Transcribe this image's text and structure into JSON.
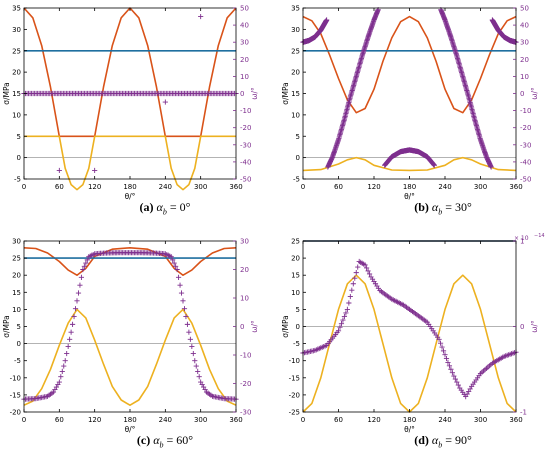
{
  "chart_data": [
    {
      "type": "line",
      "panel": "(a)",
      "caption": {
        "label": "(a)",
        "symbol": "α",
        "sub": "b",
        "eq": " = 0°"
      },
      "xlabel": "θ/°",
      "ylabel_left": "σ/MPa",
      "ylabel_right": "ω/°",
      "xlim": [
        0,
        360
      ],
      "ylim_left": [
        -5,
        35
      ],
      "ylim_right": [
        -50,
        50
      ],
      "xticks": [
        0,
        60,
        120,
        180,
        240,
        300,
        360
      ],
      "yticks_left": [
        -5,
        0,
        5,
        10,
        15,
        20,
        25,
        30,
        35
      ],
      "yticks_right": [
        -50,
        -40,
        -30,
        -20,
        -10,
        0,
        10,
        20,
        30,
        40,
        50
      ],
      "yticks_right_labels": [
        "-50",
        "-40",
        "-30",
        "-20",
        "-10",
        "0",
        "10",
        "20",
        "30",
        "40",
        "50"
      ],
      "series": [
        {
          "color": "#d95319",
          "axis": "left",
          "style": "line",
          "x": [
            0,
            15,
            30,
            45,
            60,
            90,
            120,
            135,
            150,
            165,
            180,
            195,
            210,
            225,
            240,
            270,
            300,
            315,
            330,
            345,
            360
          ],
          "y": [
            35,
            32.7,
            26.2,
            16.5,
            5,
            5,
            5,
            16.5,
            26.2,
            32.7,
            35,
            32.7,
            26.2,
            16.5,
            5,
            5,
            5,
            16.5,
            26.2,
            32.7,
            35
          ]
        },
        {
          "color": "#1f6f9f",
          "axis": "left",
          "style": "line",
          "x": [
            0,
            360
          ],
          "y": [
            25,
            25
          ]
        },
        {
          "color": "#edb120",
          "axis": "left",
          "style": "line",
          "x": [
            0,
            45,
            60,
            70,
            80,
            90,
            100,
            110,
            120,
            135,
            225,
            240,
            250,
            260,
            270,
            280,
            290,
            300,
            315,
            360
          ],
          "y": [
            5,
            5,
            5,
            -2.5,
            -6.3,
            -7.5,
            -6.3,
            -2.5,
            5,
            5,
            5,
            5,
            -2.5,
            -6.3,
            -7.5,
            -6.3,
            -2.5,
            5,
            5,
            5
          ]
        },
        {
          "color": "#7e2f8e",
          "axis": "right",
          "style": "markers",
          "x": [
            0,
            360
          ],
          "y": [
            0,
            0
          ]
        },
        {
          "color": "#7e2f8e",
          "axis": "right",
          "style": "points",
          "x": [
            60,
            120,
            240,
            300
          ],
          "y": [
            -45,
            -45,
            -5,
            45
          ]
        }
      ]
    },
    {
      "type": "line",
      "panel": "(b)",
      "caption": {
        "label": "(b)",
        "symbol": "α",
        "sub": "b",
        "eq": " = 30°"
      },
      "xlabel": "θ/°",
      "ylabel_left": "σ/MPa",
      "ylabel_right": "ω/°",
      "xlim": [
        0,
        360
      ],
      "ylim_left": [
        -5,
        35
      ],
      "ylim_right": [
        -50,
        50
      ],
      "xticks": [
        0,
        60,
        120,
        180,
        240,
        300,
        360
      ],
      "yticks_left": [
        -5,
        0,
        5,
        10,
        15,
        20,
        25,
        30,
        35
      ],
      "yticks_right": [
        -50,
        -40,
        -30,
        -20,
        -10,
        0,
        10,
        20,
        30,
        40,
        50
      ],
      "yticks_right_labels": [
        "-50",
        "-40",
        "-30",
        "-20",
        "-10",
        "0",
        "10",
        "20",
        "30",
        "40",
        "50"
      ],
      "series": [
        {
          "color": "#d95319",
          "axis": "left",
          "style": "line",
          "x": [
            0,
            15,
            30,
            45,
            60,
            75,
            90,
            105,
            120,
            135,
            150,
            165,
            180,
            195,
            210,
            225,
            240,
            255,
            270,
            285,
            300,
            315,
            330,
            345,
            360
          ],
          "y": [
            33,
            32,
            29,
            24,
            18.5,
            13.5,
            10.5,
            11.5,
            16,
            22.5,
            28,
            31.8,
            33,
            31.8,
            28,
            22.5,
            16,
            11.5,
            10.5,
            13.5,
            18.5,
            24,
            29,
            32,
            33
          ]
        },
        {
          "color": "#1f6f9f",
          "axis": "left",
          "style": "line",
          "x": [
            0,
            360
          ],
          "y": [
            25,
            25
          ]
        },
        {
          "color": "#edb120",
          "axis": "left",
          "style": "line",
          "x": [
            0,
            30,
            60,
            75,
            90,
            105,
            120,
            150,
            180,
            210,
            240,
            255,
            270,
            285,
            300,
            330,
            360
          ],
          "y": [
            -3,
            -2.8,
            -1.5,
            -0.5,
            0,
            -0.5,
            -1.8,
            -2.9,
            -3,
            -2.9,
            -1.8,
            -0.5,
            0,
            -0.5,
            -1.5,
            -2.8,
            -3
          ]
        },
        {
          "color": "#7e2f8e",
          "axis": "right",
          "style": "markers",
          "x": [
            0,
            10,
            20,
            30,
            40
          ],
          "y": [
            30,
            31,
            33,
            37,
            43
          ]
        },
        {
          "color": "#7e2f8e",
          "axis": "right",
          "style": "markers",
          "x": [
            42,
            50,
            60,
            70,
            80,
            90,
            100,
            110,
            120,
            127
          ],
          "y": [
            -43,
            -37,
            -27,
            -15,
            -2,
            10,
            22,
            33,
            43,
            49
          ]
        },
        {
          "color": "#7e2f8e",
          "axis": "right",
          "style": "markers",
          "x": [
            138,
            150,
            165,
            180,
            195,
            210,
            222
          ],
          "y": [
            -42,
            -37,
            -34,
            -33,
            -34,
            -37,
            -42
          ]
        },
        {
          "color": "#7e2f8e",
          "axis": "right",
          "style": "markers",
          "x": [
            233,
            240,
            250,
            260,
            270,
            280,
            290,
            300,
            310,
            318
          ],
          "y": [
            49,
            43,
            33,
            22,
            10,
            -2,
            -15,
            -27,
            -37,
            -43
          ]
        },
        {
          "color": "#7e2f8e",
          "axis": "right",
          "style": "markers",
          "x": [
            320,
            330,
            340,
            350,
            360
          ],
          "y": [
            43,
            37,
            33,
            31,
            30
          ]
        }
      ]
    },
    {
      "type": "line",
      "panel": "(c)",
      "caption": {
        "label": "(c)",
        "symbol": "α",
        "sub": "b",
        "eq": " = 60°"
      },
      "xlabel": "θ/°",
      "ylabel_left": "σ/MPa",
      "ylabel_right": "ω/°",
      "xlim": [
        0,
        360
      ],
      "ylim_left": [
        -20,
        30
      ],
      "ylim_right": [
        -30,
        30
      ],
      "xticks": [
        0,
        60,
        120,
        180,
        240,
        300,
        360
      ],
      "yticks_left": [
        -20,
        -15,
        -10,
        -5,
        0,
        5,
        10,
        15,
        20,
        25,
        30
      ],
      "yticks_right": [
        -30,
        -20,
        -10,
        0,
        10,
        20,
        30
      ],
      "yticks_right_labels": [
        "-30",
        "-20",
        "-10",
        "0",
        "10",
        "20",
        "30"
      ],
      "series": [
        {
          "color": "#d95319",
          "axis": "left",
          "style": "line",
          "x": [
            0,
            20,
            40,
            60,
            75,
            90,
            105,
            120,
            150,
            180,
            210,
            240,
            255,
            270,
            285,
            300,
            320,
            340,
            360
          ],
          "y": [
            28,
            27.8,
            26.5,
            24,
            21.5,
            20,
            22,
            25.5,
            27.6,
            28,
            27.6,
            25.5,
            22,
            20,
            21.5,
            24,
            26.5,
            27.8,
            28
          ]
        },
        {
          "color": "#1f6f9f",
          "axis": "left",
          "style": "line",
          "x": [
            0,
            360
          ],
          "y": [
            25,
            25
          ]
        },
        {
          "color": "#edb120",
          "axis": "left",
          "style": "line",
          "x": [
            0,
            15,
            30,
            45,
            60,
            75,
            90,
            105,
            120,
            135,
            150,
            165,
            180,
            195,
            210,
            225,
            240,
            255,
            270,
            285,
            300,
            315,
            330,
            345,
            360
          ],
          "y": [
            -18,
            -16.8,
            -13.2,
            -7.5,
            -0.5,
            6,
            10,
            7.5,
            1,
            -6,
            -12.5,
            -16.5,
            -18,
            -16.5,
            -12.5,
            -6,
            1,
            7.5,
            10,
            6,
            -0.5,
            -7.5,
            -13.2,
            -16.8,
            -18
          ]
        },
        {
          "color": "#7e2f8e",
          "axis": "right",
          "style": "markers",
          "x": [
            0,
            20,
            40,
            50,
            60,
            70,
            80,
            90,
            100,
            110,
            120,
            140,
            160,
            180,
            200,
            220,
            240,
            250,
            260,
            270,
            280,
            290,
            300,
            310,
            320,
            340,
            360
          ],
          "y": [
            -25.5,
            -25.3,
            -24.5,
            -23,
            -19.5,
            -12,
            -2,
            9,
            20,
            24.5,
            25.5,
            25.8,
            25.9,
            25.9,
            25.9,
            25.8,
            25.5,
            24.5,
            20,
            9,
            -2,
            -12,
            -19.5,
            -23,
            -24.5,
            -25.3,
            -25.5
          ]
        }
      ]
    },
    {
      "type": "line",
      "panel": "(d)",
      "caption": {
        "label": "(d)",
        "symbol": "α",
        "sub": "b",
        "eq": " = 90°"
      },
      "xlabel": "θ/°",
      "ylabel_left": "σ/MPa",
      "ylabel_right": "ω/°",
      "right_exponent": "× 10",
      "right_exponent_power": "−14",
      "xlim": [
        0,
        360
      ],
      "ylim_left": [
        -25,
        25
      ],
      "ylim_right": [
        -1,
        1
      ],
      "xticks": [
        0,
        60,
        120,
        180,
        240,
        300,
        360
      ],
      "yticks_left": [
        -25,
        -20,
        -15,
        -10,
        -5,
        0,
        5,
        10,
        15,
        20,
        25
      ],
      "yticks_right": [
        -1,
        0,
        1
      ],
      "yticks_right_labels": [
        "-1",
        "0",
        "1"
      ],
      "series": [
        {
          "color": "#d95319",
          "axis": "left",
          "style": "line",
          "x": [
            0,
            360
          ],
          "y": [
            25,
            25
          ]
        },
        {
          "color": "#1f6f9f",
          "axis": "left",
          "style": "line",
          "x": [
            0,
            360
          ],
          "y": [
            25,
            25
          ]
        },
        {
          "color": "#edb120",
          "axis": "left",
          "style": "line",
          "x": [
            0,
            15,
            30,
            45,
            60,
            75,
            90,
            105,
            120,
            135,
            150,
            165,
            180,
            195,
            210,
            225,
            240,
            255,
            270,
            285,
            300,
            315,
            330,
            345,
            360
          ],
          "y": [
            -25,
            -22.5,
            -15,
            -5,
            5,
            12.5,
            15,
            12.5,
            5,
            -5,
            -15,
            -22.5,
            -25,
            -22.5,
            -15,
            -5,
            5,
            12.5,
            15,
            12.5,
            5,
            -5,
            -15,
            -22.5,
            -25
          ]
        },
        {
          "color": "#7e2f8e",
          "axis": "right",
          "style": "markers",
          "x": [
            0,
            20,
            40,
            60,
            75,
            85,
            95,
            105,
            115,
            130,
            150,
            170,
            190,
            210,
            230,
            245,
            255,
            265,
            275,
            285,
            300,
            320,
            340,
            360
          ],
          "y": [
            -0.31,
            -0.28,
            -0.22,
            -0.05,
            0.2,
            0.5,
            0.76,
            0.72,
            0.58,
            0.42,
            0.32,
            0.25,
            0.15,
            0.05,
            -0.15,
            -0.42,
            -0.58,
            -0.72,
            -0.82,
            -0.7,
            -0.55,
            -0.43,
            -0.35,
            -0.3
          ]
        }
      ]
    }
  ]
}
